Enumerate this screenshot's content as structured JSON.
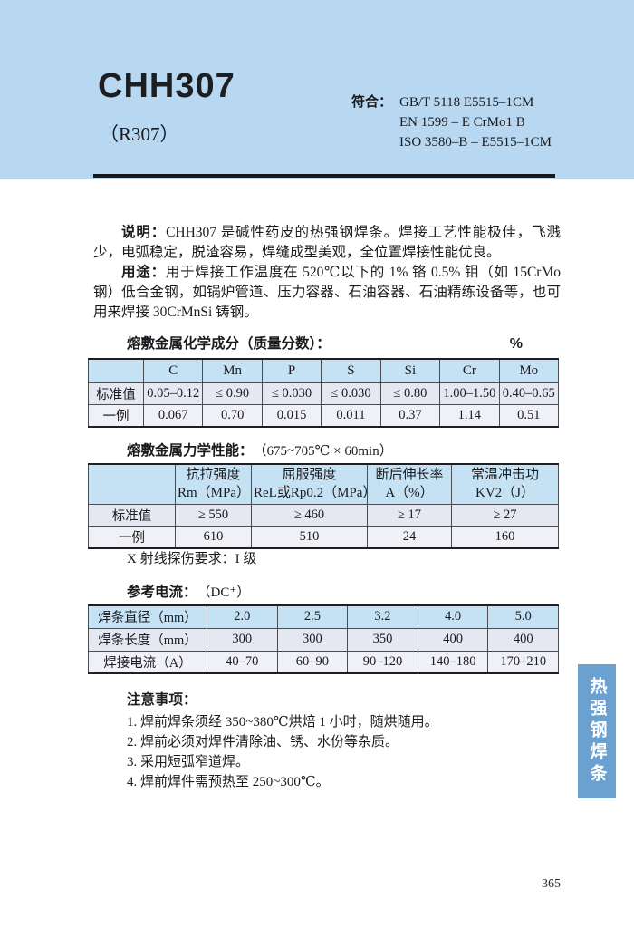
{
  "page": {
    "number": "365"
  },
  "header": {
    "model": "CHH307",
    "alias": "（R307）",
    "conform_label": "符合：",
    "standards": [
      "GB/T 5118 E5515–1CM",
      "EN 1599 – E CrMo1 B",
      "ISO 3580–B – E5515–1CM"
    ]
  },
  "description": {
    "label": "说明：",
    "text": "CHH307 是碱性药皮的热强钢焊条。焊接工艺性能极佳，飞溅少，电弧稳定，脱渣容易，焊缝成型美观，全位置焊接性能优良。",
    "usage_label": "用途：",
    "usage_text": "用于焊接工作温度在 520℃以下的 1% 铬 0.5% 钼（如 15CrMo 钢）低合金钢，如锅炉管道、压力容器、石油容器、石油精练设备等，也可用来焊接 30CrMnSi 铸钢。"
  },
  "chem_section": {
    "title": "熔敷金属化学成分（质量分数）：",
    "unit": "%",
    "table": {
      "header": [
        "",
        "C",
        "Mn",
        "P",
        "S",
        "Si",
        "Cr",
        "Mo"
      ],
      "rows": [
        {
          "label": "标准值",
          "values": [
            "0.05–0.12",
            "≤ 0.90",
            "≤ 0.030",
            "≤ 0.030",
            "≤ 0.80",
            "1.00–1.50",
            "0.40–0.65"
          ]
        },
        {
          "label": "一例",
          "values": [
            "0.067",
            "0.70",
            "0.015",
            "0.011",
            "0.37",
            "1.14",
            "0.51"
          ]
        }
      ]
    }
  },
  "mech_section": {
    "title": "熔敷金属力学性能：",
    "condition": "（675~705℃ × 60min）",
    "table": {
      "header": [
        "",
        {
          "line1": "抗拉强度",
          "line2": "Rm（MPa）"
        },
        {
          "line1": "屈服强度",
          "line2": "ReL或Rp0.2（MPa）"
        },
        {
          "line1": "断后伸长率",
          "line2": "A（%）"
        },
        {
          "line1": "常温冲击功",
          "line2": "KV2（J）"
        }
      ],
      "rows": [
        {
          "label": "标准值",
          "values": [
            "≥ 550",
            "≥ 460",
            "≥ 17",
            "≥ 27"
          ]
        },
        {
          "label": "一例",
          "values": [
            "610",
            "510",
            "24",
            "160"
          ]
        }
      ]
    },
    "xray_note": "X 射线探伤要求：I 级"
  },
  "current_section": {
    "title": "参考电流：",
    "condition": "（DC⁺）",
    "table": {
      "rows": [
        {
          "label": "焊条直径（mm）",
          "values": [
            "2.0",
            "2.5",
            "3.2",
            "4.0",
            "5.0"
          ],
          "style": "head"
        },
        {
          "label": "焊条长度（mm）",
          "values": [
            "300",
            "300",
            "350",
            "400",
            "400"
          ],
          "style": "alt"
        },
        {
          "label": "焊接电流（A）",
          "values": [
            "40–70",
            "60–90",
            "90–120",
            "140–180",
            "170–210"
          ],
          "style": "plain"
        }
      ]
    }
  },
  "notes": {
    "title": "注意事项：",
    "items": [
      "1. 焊前焊条须经 350~380℃烘焙 1 小时，随烘随用。",
      "2. 焊前必须对焊件清除油、锈、水份等杂质。",
      "3. 采用短弧窄道焊。",
      "4. 焊前焊件需预热至 250~300℃。"
    ]
  },
  "side_tab": {
    "label": "热强钢焊条"
  }
}
